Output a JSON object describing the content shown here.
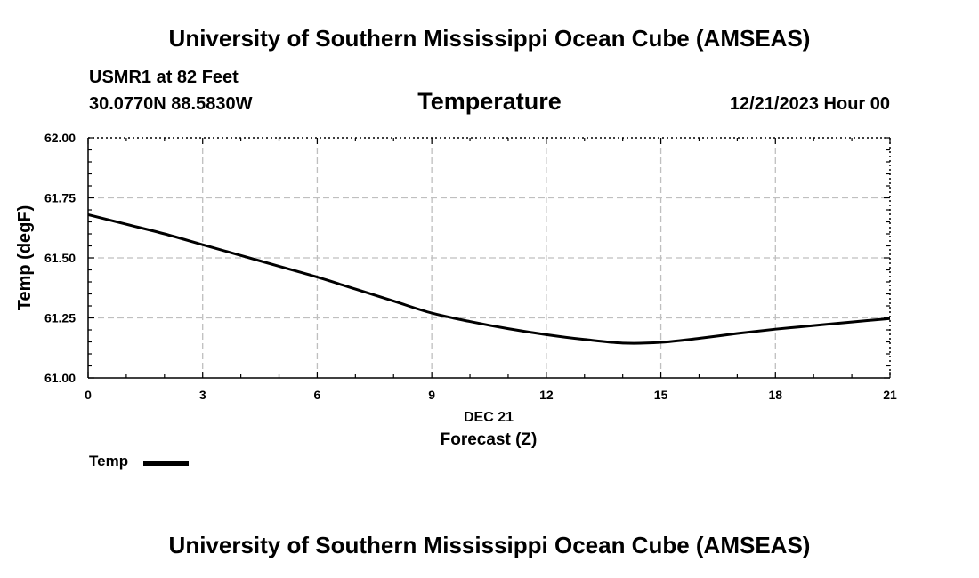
{
  "header": {
    "title": "University of Southern Mississippi Ocean Cube (AMSEAS)",
    "station": "USMR1 at 82 Feet",
    "coords": "30.0770N  88.5830W",
    "variable": "Temperature",
    "datetime": "12/21/2023 Hour 00"
  },
  "footer": {
    "title": "University of Southern Mississippi Ocean Cube (AMSEAS)"
  },
  "legend": {
    "label": "Temp",
    "color": "#000000"
  },
  "chart_data": {
    "type": "line",
    "title": "Temperature",
    "xlabel": "Forecast (Z)",
    "xlabel_date": "DEC 21",
    "ylabel": "Temp (degF)",
    "xlim": [
      0,
      21
    ],
    "ylim": [
      61.0,
      62.0
    ],
    "xticks": [
      0,
      3,
      6,
      9,
      12,
      15,
      18,
      21
    ],
    "xtick_labels": [
      "0",
      "3",
      "6",
      "9",
      "12",
      "15",
      "18",
      "21"
    ],
    "yticks": [
      61.0,
      61.25,
      61.5,
      61.75,
      62.0
    ],
    "ytick_labels": [
      "61.00",
      "61.25",
      "61.50",
      "61.75",
      "62.00"
    ],
    "grid": true,
    "series": [
      {
        "name": "Temp",
        "color": "#000000",
        "x": [
          0,
          1,
          2,
          3,
          4,
          5,
          6,
          7,
          8,
          9,
          10,
          11,
          12,
          13,
          14,
          15,
          16,
          17,
          18,
          19,
          20,
          21
        ],
        "y": [
          61.68,
          61.64,
          61.6,
          61.555,
          61.51,
          61.465,
          61.42,
          61.37,
          61.32,
          61.27,
          61.235,
          61.205,
          61.18,
          61.16,
          61.145,
          61.148,
          61.165,
          61.185,
          61.203,
          61.218,
          61.233,
          61.247
        ]
      }
    ]
  }
}
